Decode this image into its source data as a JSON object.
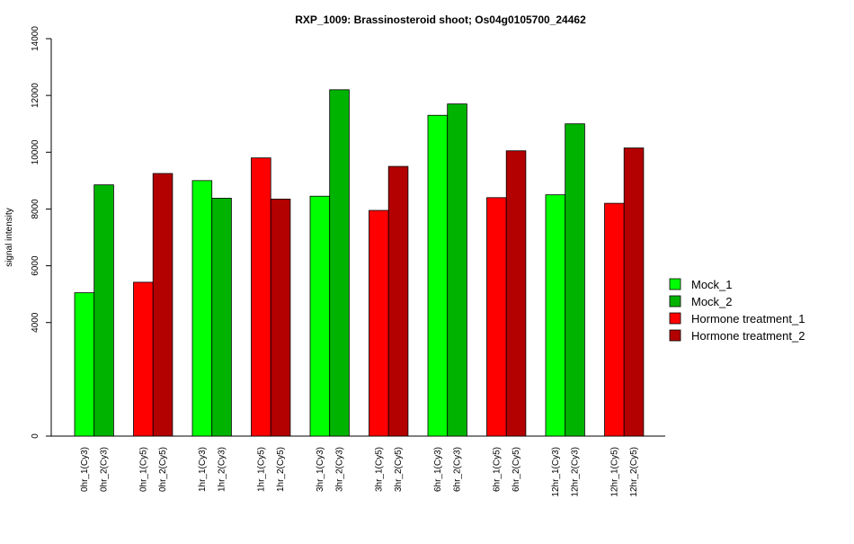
{
  "chart_data": {
    "type": "bar",
    "title": "RXP_1009: Brassinosteroid shoot; Os04g0105700_24462",
    "ylabel": "signal intensity",
    "xlabel": "",
    "ylim": [
      0,
      14000
    ],
    "yticks": [
      "0",
      "4000",
      "6000",
      "8000",
      "10000",
      "12000",
      "14000"
    ],
    "grid": false,
    "legend_position": "right",
    "series_colors": {
      "Mock_1": "#00ff00",
      "Mock_2": "#00b300",
      "Hormone treatment_1": "#ff0000",
      "Hormone treatment_2": "#b30000"
    },
    "legend": [
      {
        "name": "Mock_1",
        "color": "#00ff00"
      },
      {
        "name": "Mock_2",
        "color": "#00b300"
      },
      {
        "name": "Hormone treatment_1",
        "color": "#ff0000"
      },
      {
        "name": "Hormone treatment_2",
        "color": "#b30000"
      }
    ],
    "groups": [
      {
        "bars": [
          {
            "label": "0hr_1(Cy3)",
            "value": 5050,
            "series": "Mock_1"
          },
          {
            "label": "0hr_2(Cy3)",
            "value": 8850,
            "series": "Mock_2"
          }
        ]
      },
      {
        "bars": [
          {
            "label": "0hr_1(Cy5)",
            "value": 5420,
            "series": "Hormone treatment_1"
          },
          {
            "label": "0hr_2(Cy5)",
            "value": 9250,
            "series": "Hormone treatment_2"
          }
        ]
      },
      {
        "bars": [
          {
            "label": "1hr_1(Cy3)",
            "value": 9000,
            "series": "Mock_1"
          },
          {
            "label": "1hr_2(Cy3)",
            "value": 8380,
            "series": "Mock_2"
          }
        ]
      },
      {
        "bars": [
          {
            "label": "1hr_1(Cy5)",
            "value": 9800,
            "series": "Hormone treatment_1"
          },
          {
            "label": "1hr_2(Cy5)",
            "value": 8350,
            "series": "Hormone treatment_2"
          }
        ]
      },
      {
        "bars": [
          {
            "label": "3hr_1(Cy3)",
            "value": 8450,
            "series": "Mock_1"
          },
          {
            "label": "3hr_2(Cy3)",
            "value": 12200,
            "series": "Mock_2"
          }
        ]
      },
      {
        "bars": [
          {
            "label": "3hr_1(Cy5)",
            "value": 7950,
            "series": "Hormone treatment_1"
          },
          {
            "label": "3hr_2(Cy5)",
            "value": 9500,
            "series": "Hormone treatment_2"
          }
        ]
      },
      {
        "bars": [
          {
            "label": "6hr_1(Cy3)",
            "value": 11300,
            "series": "Mock_1"
          },
          {
            "label": "6hr_2(Cy3)",
            "value": 11700,
            "series": "Mock_2"
          }
        ]
      },
      {
        "bars": [
          {
            "label": "6hr_1(Cy5)",
            "value": 8400,
            "series": "Hormone treatment_1"
          },
          {
            "label": "6hr_2(Cy5)",
            "value": 10050,
            "series": "Hormone treatment_2"
          }
        ]
      },
      {
        "bars": [
          {
            "label": "12hr_1(Cy3)",
            "value": 8500,
            "series": "Mock_1"
          },
          {
            "label": "12hr_2(Cy3)",
            "value": 11000,
            "series": "Mock_2"
          }
        ]
      },
      {
        "bars": [
          {
            "label": "12hr_1(Cy5)",
            "value": 8200,
            "series": "Hormone treatment_1"
          },
          {
            "label": "12hr_2(Cy5)",
            "value": 10150,
            "series": "Hormone treatment_2"
          }
        ]
      }
    ]
  }
}
